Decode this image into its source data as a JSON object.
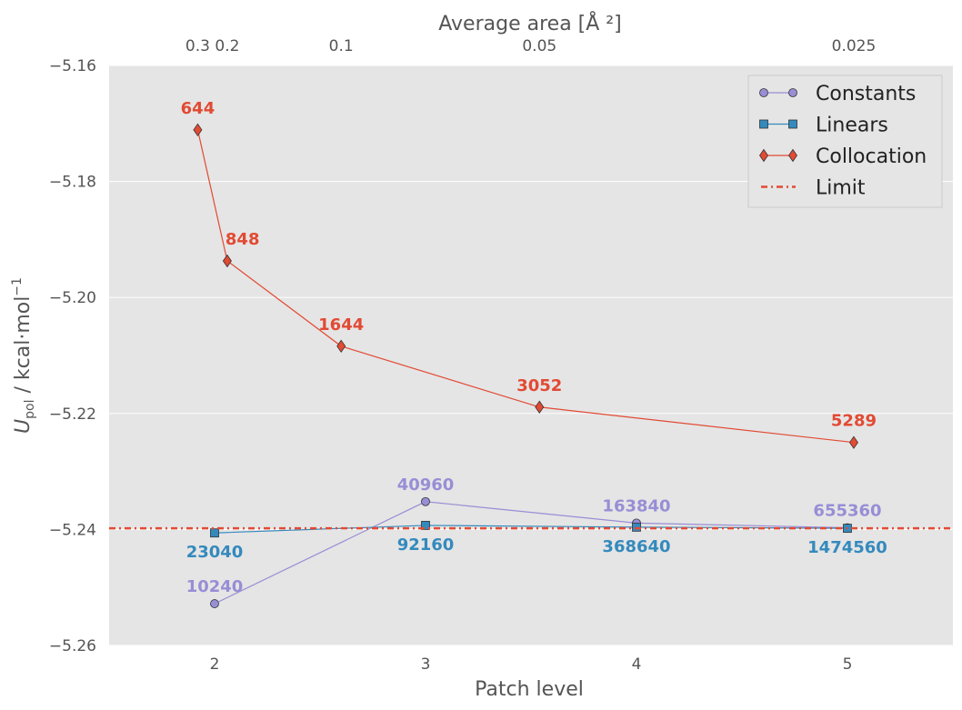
{
  "chart_data": {
    "type": "line",
    "xlabel": "Patch level",
    "ylabel_main": "U",
    "ylabel_sub": "pol",
    "ylabel_rest": " / kcal·mol",
    "ylabel_sup": "−1",
    "top_xlabel": "Average area [Å ²]",
    "xlim": [
      1.5,
      5.5
    ],
    "ylim": [
      -5.26,
      -5.16
    ],
    "x_ticks": [
      2,
      3,
      4,
      5
    ],
    "x_tick_labels": [
      "2",
      "3",
      "4",
      "5"
    ],
    "y_ticks": [
      -5.26,
      -5.24,
      -5.22,
      -5.2,
      -5.18,
      -5.16
    ],
    "y_tick_labels": [
      "−5.26",
      "−5.24",
      "−5.22",
      "−5.20",
      "−5.18",
      "−5.16"
    ],
    "top_ticks": [
      {
        "x": 1.92,
        "label": "0.3"
      },
      {
        "x": 2.06,
        "label": "0.2"
      },
      {
        "x": 2.6,
        "label": "0.1"
      },
      {
        "x": 3.54,
        "label": "0.05"
      },
      {
        "x": 5.03,
        "label": "0.025"
      }
    ],
    "grid": true,
    "legend_position": "top-right",
    "series": [
      {
        "name": "Constants",
        "color": "#988ED5",
        "marker": "circle",
        "x": [
          2,
          3,
          4,
          5
        ],
        "y": [
          -5.2528,
          -5.2352,
          -5.2389,
          -5.2397
        ],
        "labels": [
          "10240",
          "40960",
          "163840",
          "655360"
        ],
        "label_pos": [
          "above",
          "above",
          "above",
          "above"
        ]
      },
      {
        "name": "Linears",
        "color": "#348ABD",
        "marker": "square",
        "x": [
          2,
          3,
          4,
          5
        ],
        "y": [
          -5.2406,
          -5.2393,
          -5.2396,
          -5.2398
        ],
        "labels": [
          "23040",
          "92160",
          "368640",
          "1474560"
        ],
        "label_pos": [
          "below",
          "below",
          "below",
          "below"
        ]
      },
      {
        "name": "Collocation",
        "color": "#E24A33",
        "marker": "diamond",
        "x": [
          1.92,
          2.06,
          2.6,
          3.54,
          5.03
        ],
        "y": [
          -5.1711,
          -5.1937,
          -5.2084,
          -5.2189,
          -5.225
        ],
        "labels": [
          "644",
          "848",
          "1644",
          "3052",
          "5289"
        ],
        "label_pos": [
          "above",
          "above-right",
          "above",
          "above",
          "above"
        ]
      },
      {
        "name": "Limit",
        "color": "#E24A33",
        "marker": "none",
        "linestyle": "dashdot",
        "y_const": -5.2398
      }
    ]
  }
}
